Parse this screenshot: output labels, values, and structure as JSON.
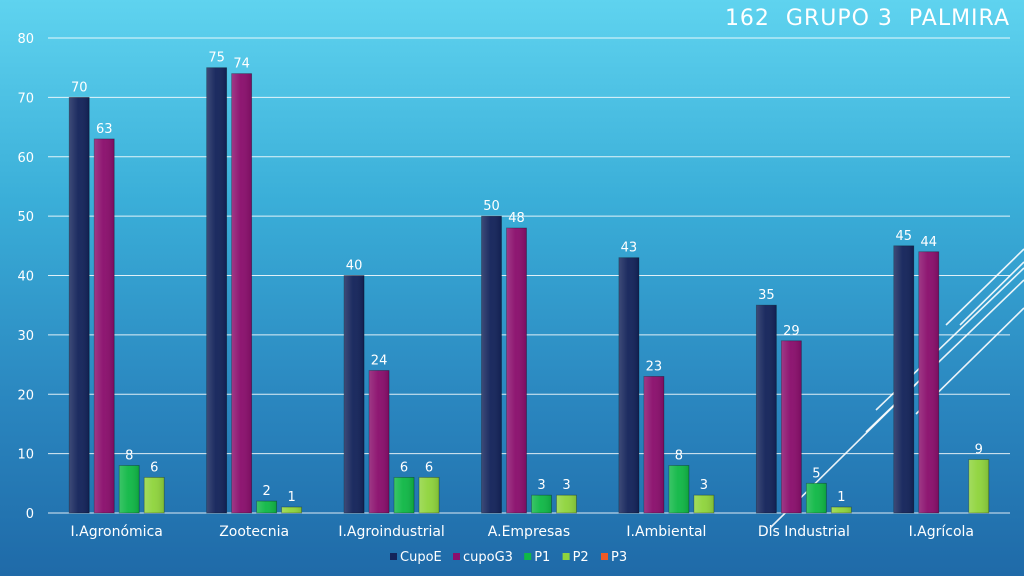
{
  "title": "162  GRUPO 3  PALMIRA",
  "chart_data": {
    "type": "bar",
    "title": "162  GRUPO 3  PALMIRA",
    "categories": [
      "I.Agronómica",
      "Zootecnia",
      "I.Agroindustrial",
      "A.Empresas",
      "I.Ambiental",
      "Dis Industrial",
      "I.Agrícola"
    ],
    "series": [
      {
        "name": "CupoE",
        "color": "#13235a",
        "values": [
          70,
          75,
          40,
          50,
          43,
          35,
          45
        ]
      },
      {
        "name": "cupoG3",
        "color": "#8a0e6c",
        "values": [
          63,
          74,
          24,
          48,
          23,
          29,
          44
        ]
      },
      {
        "name": "P1",
        "color": "#10b846",
        "values": [
          8,
          2,
          6,
          3,
          8,
          5,
          null
        ]
      },
      {
        "name": "P2",
        "color": "#8fd43c",
        "values": [
          6,
          1,
          6,
          3,
          3,
          1,
          9
        ]
      },
      {
        "name": "P3",
        "color": "#ee5a24",
        "values": [
          null,
          null,
          null,
          null,
          null,
          null,
          null
        ]
      }
    ],
    "ylim": [
      0,
      80
    ],
    "yticks": [
      0,
      10,
      20,
      30,
      40,
      50,
      60,
      70,
      80
    ],
    "grid": true,
    "legend_position": "bottom"
  }
}
